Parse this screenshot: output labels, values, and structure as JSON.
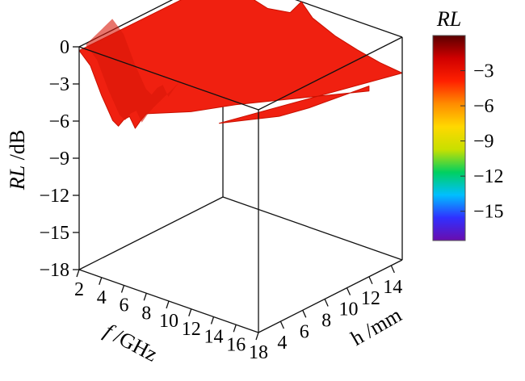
{
  "chart_data": {
    "type": "surface3d",
    "zlabel": {
      "italic": "RL",
      "rest": " /dB"
    },
    "xlabel": {
      "italic": "f",
      "rest": " /GHz"
    },
    "ylabel": "h /mm",
    "x_ticks": [
      "2",
      "4",
      "6",
      "8",
      "10",
      "12",
      "14",
      "16",
      "18"
    ],
    "y_ticks": [
      "4",
      "6",
      "8",
      "10",
      "12",
      "14"
    ],
    "z_ticks": [
      "0",
      "−3",
      "−6",
      "−9",
      "−12",
      "−15",
      "−18"
    ],
    "xlim": [
      2,
      18
    ],
    "ylim": [
      2,
      15
    ],
    "zlim": [
      -18,
      0
    ],
    "colorbar": {
      "title": "RL",
      "ticks": [
        "−3",
        "−6",
        "−9",
        "−12",
        "−15"
      ],
      "range": [
        -17.5,
        0
      ],
      "colors": [
        "#6a0dad",
        "#3030ff",
        "#00bfff",
        "#00d060",
        "#c8e000",
        "#ffd800",
        "#ff8c00",
        "#ff2000",
        "#d00000",
        "#5a0000"
      ]
    },
    "surface": {
      "color": "#f02010",
      "edge_low_h": {
        "x": [
          2,
          3,
          4,
          5,
          5.5,
          6,
          6.5,
          7,
          7.5,
          8
        ],
        "z": [
          -0.3,
          -1.2,
          -3.3,
          -5.0,
          -5.3,
          -4.6,
          -4.2,
          -5.0,
          -4.2,
          -3.5
        ]
      },
      "edge_high_h": {
        "x": [
          2,
          4,
          6,
          8,
          10,
          12,
          14,
          16,
          18
        ],
        "z": [
          -0.4,
          -1.0,
          -1.6,
          -2.2,
          -2.0,
          -2.3,
          -2.6,
          -2.8,
          -2.9
        ]
      },
      "edge_high_f": {
        "y": [
          2,
          4,
          6,
          8,
          10,
          12,
          14,
          15
        ],
        "z": [
          -2.2,
          -2.6,
          -3.0,
          -3.0,
          -2.8,
          -2.6,
          -2.8,
          -3.0
        ]
      },
      "ridge_peak_z": 0
    }
  }
}
